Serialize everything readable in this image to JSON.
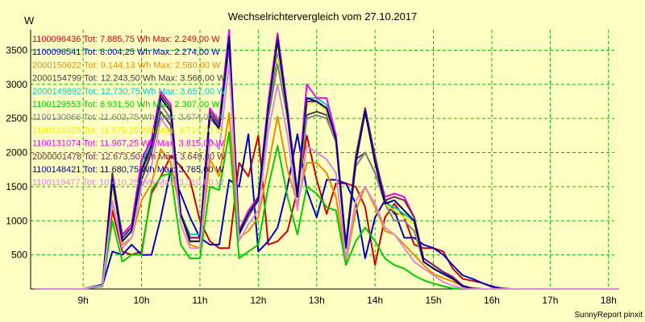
{
  "chart_data": {
    "type": "line",
    "title": "Wechselrichtervergleich vom 27.10.2017",
    "ylabel": "W",
    "footer": "SunnyReport pinxit",
    "ylim": [
      0,
      3800
    ],
    "xlim": [
      8.1,
      18.1
    ],
    "grid": true,
    "legend_position": "top-left",
    "yticks": [
      {
        "v": 500,
        "label": "500"
      },
      {
        "v": 1000,
        "label": "1000"
      },
      {
        "v": 1500,
        "label": "1500"
      },
      {
        "v": 2000,
        "label": "2000"
      },
      {
        "v": 2500,
        "label": "2500"
      },
      {
        "v": 3000,
        "label": "3000"
      },
      {
        "v": 3500,
        "label": "3500"
      }
    ],
    "xticks": [
      {
        "v": 9,
        "label": "9h"
      },
      {
        "v": 10,
        "label": "10h"
      },
      {
        "v": 11,
        "label": "11h"
      },
      {
        "v": 12,
        "label": "12h"
      },
      {
        "v": 13,
        "label": "13h"
      },
      {
        "v": 14,
        "label": "14h"
      },
      {
        "v": 15,
        "label": "15h"
      },
      {
        "v": 16,
        "label": "16h"
      },
      {
        "v": 17,
        "label": "17h"
      },
      {
        "v": 18,
        "label": "18h"
      }
    ],
    "x": [
      8.17,
      8.33,
      8.5,
      8.67,
      8.83,
      9.0,
      9.17,
      9.33,
      9.5,
      9.67,
      9.83,
      10.0,
      10.17,
      10.33,
      10.5,
      10.67,
      10.83,
      11.0,
      11.17,
      11.33,
      11.5,
      11.67,
      11.83,
      12.0,
      12.17,
      12.33,
      12.5,
      12.67,
      12.83,
      13.0,
      13.17,
      13.33,
      13.5,
      13.67,
      13.83,
      14.0,
      14.17,
      14.33,
      14.5,
      14.67,
      14.83,
      15.0,
      15.17,
      15.33,
      15.5,
      15.67,
      15.83,
      16.0,
      16.17,
      16.33,
      16.5,
      16.67,
      16.83,
      17.0,
      17.17,
      17.33,
      17.5,
      17.67,
      17.83,
      18.0,
      18.17
    ],
    "series": [
      {
        "name": "1100096436 Tot: 7.885,75 Wh Max: 2.249,00 W",
        "color": "#cc0000",
        "values": [
          0,
          0,
          0,
          0,
          0,
          0,
          20,
          50,
          1150,
          550,
          500,
          550,
          1400,
          1650,
          1950,
          1800,
          1600,
          1000,
          700,
          600,
          600,
          1850,
          1650,
          2250,
          650,
          700,
          850,
          1450,
          2250,
          1600,
          1100,
          1550,
          1550,
          1500,
          1200,
          350,
          1050,
          1250,
          1050,
          650,
          600,
          600,
          550,
          300,
          150,
          120,
          90,
          30,
          10,
          0,
          0,
          0,
          0,
          0,
          0,
          0,
          0,
          0,
          0,
          0,
          0
        ]
      },
      {
        "name": "1100096541 Tot: 8.004,25 Wh Max: 2.274,00 W",
        "color": "#0000cc",
        "values": [
          0,
          0,
          0,
          0,
          0,
          0,
          30,
          50,
          550,
          500,
          650,
          500,
          500,
          1050,
          1750,
          1400,
          1050,
          750,
          650,
          650,
          1600,
          1500,
          2270,
          550,
          700,
          900,
          1500,
          2270,
          1450,
          1050,
          1600,
          1600,
          1550,
          1250,
          450,
          1050,
          1300,
          1150,
          750,
          750,
          650,
          600,
          500,
          350,
          200,
          150,
          90,
          40,
          10,
          0,
          0,
          0,
          0,
          0,
          0,
          0,
          0,
          0,
          0,
          0,
          0
        ]
      },
      {
        "name": "2000150622 Tot: 9.144,13 Wh Max: 2.580,00 W",
        "color": "#ee8800",
        "values": [
          0,
          0,
          0,
          0,
          0,
          0,
          30,
          50,
          1250,
          650,
          750,
          1300,
          1550,
          2050,
          1850,
          1100,
          650,
          600,
          1900,
          1650,
          2580,
          750,
          850,
          1050,
          1800,
          2530,
          1750,
          1250,
          1850,
          1850,
          1700,
          1350,
          400,
          1150,
          1500,
          1200,
          850,
          800,
          650,
          500,
          350,
          220,
          160,
          110,
          40,
          10,
          0,
          0,
          0,
          0,
          0,
          0,
          0,
          0,
          0,
          0,
          0,
          0,
          0,
          0,
          0
        ]
      },
      {
        "name": "2000154799 Tot: 12.243,50 Wh Max: 3.566,00 W",
        "color": "#404040",
        "values": [
          0,
          0,
          0,
          0,
          0,
          0,
          30,
          60,
          1700,
          750,
          900,
          1600,
          2000,
          2600,
          2400,
          1100,
          750,
          750,
          2550,
          2350,
          3560,
          850,
          1100,
          1300,
          2600,
          3500,
          2600,
          1350,
          2550,
          2600,
          2550,
          2250,
          650,
          1900,
          2000,
          1700,
          1300,
          1100,
          1100,
          1000,
          400,
          300,
          220,
          150,
          40,
          10,
          0,
          0,
          0,
          0,
          0,
          0,
          0,
          0,
          0,
          0,
          0,
          0,
          0,
          0,
          0
        ]
      },
      {
        "name": "2000149892 Tot: 12.730,75 Wh Max: 3.657,00 W",
        "color": "#00cccc",
        "values": [
          0,
          0,
          0,
          0,
          0,
          0,
          40,
          70,
          1600,
          800,
          900,
          1850,
          2150,
          2850,
          2650,
          1100,
          800,
          800,
          2600,
          2450,
          3650,
          850,
          1150,
          1350,
          2700,
          3650,
          2650,
          1400,
          2800,
          2800,
          2700,
          2200,
          650,
          1900,
          2650,
          1900,
          1250,
          1200,
          1100,
          1000,
          450,
          350,
          250,
          180,
          50,
          10,
          0,
          0,
          0,
          0,
          0,
          0,
          0,
          0,
          0,
          0,
          0,
          0,
          0,
          0,
          0
        ]
      },
      {
        "name": "1100129553 Tot: 6.931,50 Wh Max: 2.307,00 W",
        "color": "#00cc00",
        "values": [
          0,
          0,
          0,
          0,
          0,
          0,
          20,
          40,
          1000,
          400,
          500,
          500,
          1450,
          1650,
          1700,
          650,
          450,
          450,
          1500,
          1450,
          2300,
          450,
          550,
          650,
          1500,
          2100,
          1350,
          800,
          1500,
          1400,
          1200,
          1150,
          350,
          700,
          900,
          700,
          450,
          350,
          300,
          200,
          130,
          80,
          40,
          10,
          0,
          0,
          0,
          0,
          0,
          0,
          0,
          0,
          0,
          0,
          0,
          0,
          0,
          0,
          0,
          0,
          0
        ]
      },
      {
        "name": "1100130966 Tot: 11.603,75 Wh Max: 3.674,00 W",
        "color": "#808080",
        "values": [
          0,
          0,
          0,
          0,
          0,
          0,
          30,
          60,
          1500,
          700,
          850,
          1700,
          2050,
          2700,
          2500,
          1050,
          700,
          700,
          2500,
          2350,
          3600,
          800,
          1050,
          1300,
          2500,
          3300,
          2500,
          1350,
          2500,
          2550,
          2500,
          2150,
          600,
          1800,
          2000,
          1700,
          1250,
          1000,
          1000,
          850,
          400,
          300,
          220,
          150,
          40,
          10,
          0,
          0,
          0,
          0,
          0,
          0,
          0,
          0,
          0,
          0,
          0,
          0,
          0,
          0,
          0
        ]
      },
      {
        "name": "1100131025 Tot: 11.679,25 Wh Max: 3.714,00 W",
        "color": "#eeee00",
        "values": [
          0,
          0,
          0,
          0,
          0,
          0,
          30,
          60,
          1500,
          750,
          900,
          1800,
          2100,
          2800,
          2600,
          1050,
          700,
          700,
          2550,
          2400,
          3700,
          800,
          1100,
          1300,
          2650,
          3550,
          2550,
          1350,
          2700,
          2750,
          2600,
          2200,
          600,
          1850,
          2600,
          1850,
          1250,
          1150,
          1050,
          950,
          400,
          300,
          220,
          150,
          40,
          10,
          0,
          0,
          0,
          0,
          0,
          0,
          0,
          0,
          0,
          0,
          0,
          0,
          0,
          0,
          0
        ]
      },
      {
        "name": "1100131074 Tot: 11.967,25 Wh Max: 3.815,00 W",
        "color": "#ee00ee",
        "values": [
          0,
          0,
          0,
          0,
          0,
          0,
          30,
          60,
          1600,
          800,
          950,
          1900,
          2200,
          2900,
          2700,
          1100,
          750,
          750,
          2650,
          2450,
          3800,
          850,
          1150,
          1350,
          2750,
          3750,
          2650,
          1400,
          3000,
          2800,
          2800,
          2250,
          650,
          1900,
          2650,
          1900,
          1350,
          1400,
          1350,
          1050,
          450,
          350,
          250,
          180,
          50,
          10,
          0,
          0,
          0,
          0,
          0,
          0,
          0,
          0,
          0,
          0,
          0,
          0,
          0,
          0,
          0
        ]
      },
      {
        "name": "2000001478 Tot: 12.673,50 Wh Max: 3.649,00 W",
        "color": "#772255",
        "values": [
          0,
          0,
          0,
          0,
          0,
          0,
          30,
          60,
          1650,
          750,
          900,
          1750,
          2100,
          2850,
          2650,
          1100,
          750,
          750,
          2600,
          2400,
          3650,
          850,
          1100,
          1350,
          2650,
          3700,
          2600,
          1400,
          2750,
          2750,
          2650,
          2200,
          650,
          1950,
          2650,
          1950,
          1300,
          1350,
          1300,
          1050,
          450,
          350,
          250,
          170,
          50,
          10,
          0,
          0,
          0,
          0,
          0,
          0,
          0,
          0,
          0,
          0,
          0,
          0,
          0,
          0,
          0
        ]
      },
      {
        "name": "1100148421 Tot: 11.680,75 Wh Max: 3.765,00 W",
        "color": "#000088",
        "values": [
          0,
          0,
          0,
          0,
          0,
          0,
          30,
          60,
          1600,
          700,
          850,
          1750,
          2100,
          2800,
          2600,
          1100,
          700,
          700,
          2550,
          2350,
          3700,
          800,
          1100,
          1300,
          2650,
          3650,
          2550,
          1350,
          2800,
          2750,
          2650,
          2200,
          600,
          1850,
          2600,
          1850,
          1250,
          1300,
          1150,
          1000,
          400,
          300,
          220,
          150,
          40,
          10,
          0,
          0,
          0,
          0,
          0,
          0,
          0,
          0,
          0,
          0,
          0,
          0,
          0,
          0,
          0
        ]
      },
      {
        "name": "1100119477 Tot: 10.410,25 Wh Max: 3.310,00 W",
        "color": "#dd88dd",
        "values": [
          0,
          0,
          0,
          0,
          0,
          0,
          30,
          50,
          1300,
          600,
          750,
          1500,
          1800,
          2500,
          2300,
          950,
          600,
          600,
          2200,
          2050,
          3300,
          700,
          950,
          1150,
          2300,
          3000,
          2250,
          1150,
          2100,
          2000,
          1900,
          1700,
          450,
          1300,
          1500,
          1250,
          900,
          800,
          600,
          400,
          300,
          200,
          100,
          50,
          10,
          0,
          0,
          0,
          0,
          0,
          0,
          0,
          0,
          0,
          0,
          0,
          0,
          0,
          0,
          0,
          0
        ]
      }
    ]
  }
}
